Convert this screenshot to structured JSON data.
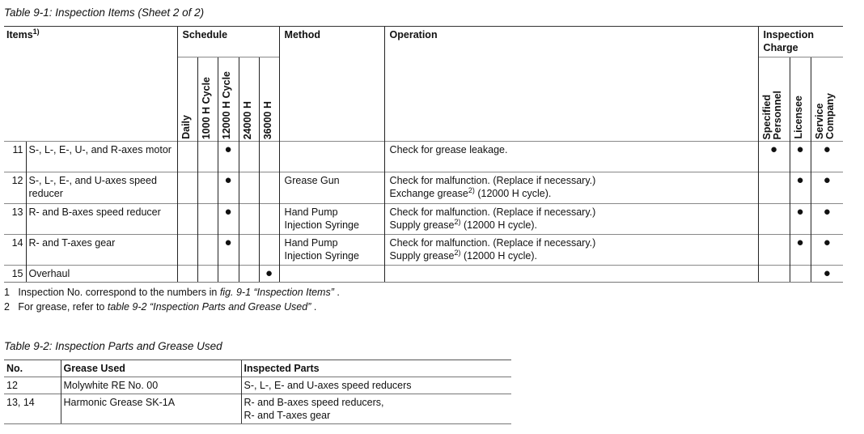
{
  "table1": {
    "caption": "Table 9-1: Inspection Items (Sheet 2 of 2)",
    "headers": {
      "items": "Items",
      "items_sup": "1)",
      "schedule": "Schedule",
      "method": "Method",
      "operation": "Operation",
      "charge": "Inspection Charge",
      "schedule_cols": [
        "Daily",
        "1000 H Cycle",
        "12000 H Cycle",
        "24000 H",
        "36000 H"
      ],
      "charge_cols": [
        "Specified\nPersonnel",
        "Licensee",
        "Service\nCompany"
      ]
    },
    "dot": "●",
    "rows": [
      {
        "no": "11",
        "item": "S-, L-, E-, U-, and R-axes motor",
        "schedule": [
          false,
          false,
          true,
          false,
          false
        ],
        "method": "",
        "op1": "Check for grease leakage.",
        "op2": "",
        "op2_sup": "",
        "op2_tail": "",
        "charge": [
          true,
          true,
          true
        ]
      },
      {
        "no": "12",
        "item": "S-, L-, E-, and U-axes speed reducer",
        "schedule": [
          false,
          false,
          true,
          false,
          false
        ],
        "method": "Grease Gun",
        "op1": "Check for malfunction. (Replace if necessary.)",
        "op2": "Exchange grease",
        "op2_sup": "2)",
        "op2_tail": " (12000 H cycle).",
        "charge": [
          false,
          true,
          true
        ]
      },
      {
        "no": "13",
        "item": "R- and B-axes speed reducer",
        "schedule": [
          false,
          false,
          true,
          false,
          false
        ],
        "method": "Hand Pump\nInjection Syringe",
        "op1": "Check for malfunction. (Replace if necessary.)",
        "op2": "Supply grease",
        "op2_sup": "2)",
        "op2_tail": " (12000 H cycle).",
        "charge": [
          false,
          true,
          true
        ]
      },
      {
        "no": "14",
        "item": "R- and T-axes gear",
        "schedule": [
          false,
          false,
          true,
          false,
          false
        ],
        "method": "Hand Pump\nInjection Syringe",
        "op1": "Check for malfunction. (Replace if necessary.)",
        "op2": "Supply grease",
        "op2_sup": "2)",
        "op2_tail": " (12000 H cycle).",
        "charge": [
          false,
          true,
          true
        ]
      },
      {
        "no": "15",
        "item": "Overhaul",
        "schedule": [
          false,
          false,
          false,
          false,
          true
        ],
        "method": "",
        "op1": "",
        "op2": "",
        "op2_sup": "",
        "op2_tail": "",
        "charge": [
          false,
          false,
          true
        ]
      }
    ]
  },
  "footnotes": [
    {
      "n": "1",
      "text": "Inspection No. correspond to the numbers in ",
      "ref": "fig. 9-1  “Inspection Items”",
      "end": " ."
    },
    {
      "n": "2",
      "text": "For grease, refer to ",
      "ref": "table 9-2  “Inspection Parts and Grease Used”",
      "end": " ."
    }
  ],
  "table2": {
    "caption": "Table 9-2: Inspection Parts and Grease Used",
    "headers": [
      "No.",
      "Grease Used",
      "Inspected Parts"
    ],
    "rows": [
      [
        "12",
        "Molywhite RE No. 00",
        "S-, L-, E- and U-axes speed reducers"
      ],
      [
        "13, 14",
        "Harmonic Grease SK-1A",
        "R- and B-axes speed reducers,\nR- and T-axes gear"
      ]
    ]
  }
}
